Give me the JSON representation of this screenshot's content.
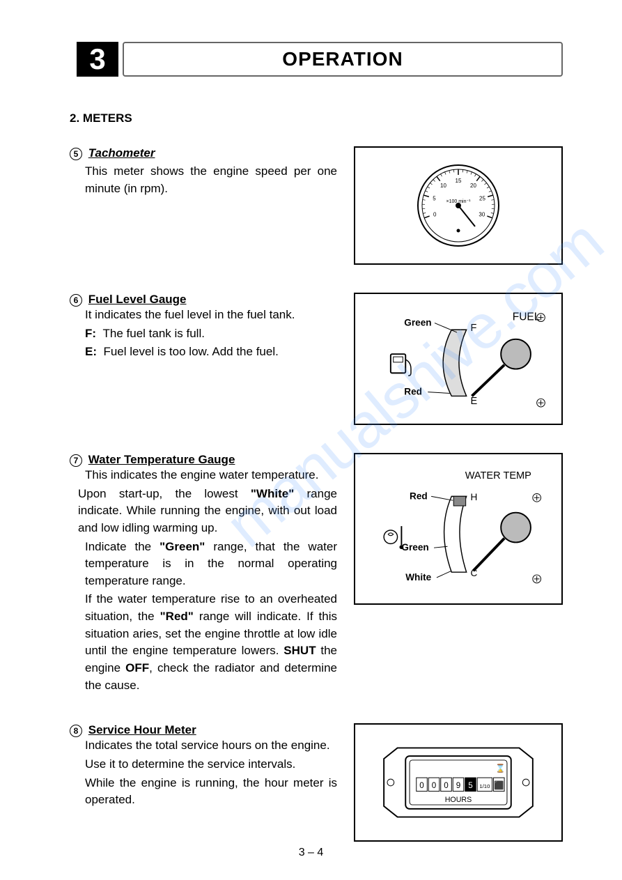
{
  "chapter": {
    "number": "3",
    "title": "OPERATION"
  },
  "section": {
    "number": "2.",
    "title": "METERS"
  },
  "items": [
    {
      "num": "5",
      "title": "Tachometer",
      "body": "This meter shows the engine speed per one minute (in rpm)."
    },
    {
      "num": "6",
      "title": "Fuel Level Gauge",
      "intro": "It indicates the fuel level in the fuel tank.",
      "f_label": "F:",
      "f_text": "The fuel tank is full.",
      "e_label": "E:",
      "e_text": "Fuel level is too low. Add the fuel."
    },
    {
      "num": "7",
      "title": "Water Temperature Gauge",
      "p1": "This indicates the engine water temperature.",
      "p2_a": "Upon start-up, the lowest ",
      "p2_b": "\"White\"",
      "p2_c": " range indicate. While running the engine, with out load and low idling warming up.",
      "p3_a": "Indicate the ",
      "p3_b": "\"Green\"",
      "p3_c": " range, that the water temperature is in the normal operating temperature range.",
      "p4_a": "If the water temperature rise to an overheated situation, the ",
      "p4_b": "\"Red\"",
      "p4_c": " range will indicate. If this situation aries, set the engine throttle at low idle until the engine temperature lowers. ",
      "p4_d": "SHUT",
      "p4_e": " the engine ",
      "p4_f": "OFF",
      "p4_g": ", check the radiator and determine the cause."
    },
    {
      "num": "8",
      "title": "Service Hour Meter",
      "p1": "Indicates the total service hours on the engine.",
      "p2": "Use it to determine the service intervals.",
      "p3": "While the engine is running, the hour meter is operated."
    }
  ],
  "figures": {
    "tach": {
      "ticks": [
        "0",
        "5",
        "10",
        "15",
        "20",
        "25",
        "30"
      ],
      "center_label": "×100 min⁻¹"
    },
    "fuel": {
      "title": "FUEL",
      "green": "Green",
      "red": "Red",
      "f": "F",
      "e": "E"
    },
    "water": {
      "title": "WATER  TEMP",
      "red": "Red",
      "green": "Green",
      "white": "White",
      "h": "H",
      "c": "C"
    },
    "hour": {
      "digits": [
        "0",
        "0",
        "0",
        "9",
        "5",
        "1/10",
        "⬛"
      ],
      "label": "HOURS",
      "topicon": "⌛"
    }
  },
  "footer": "3 – 4",
  "watermark": "manualshive.com"
}
